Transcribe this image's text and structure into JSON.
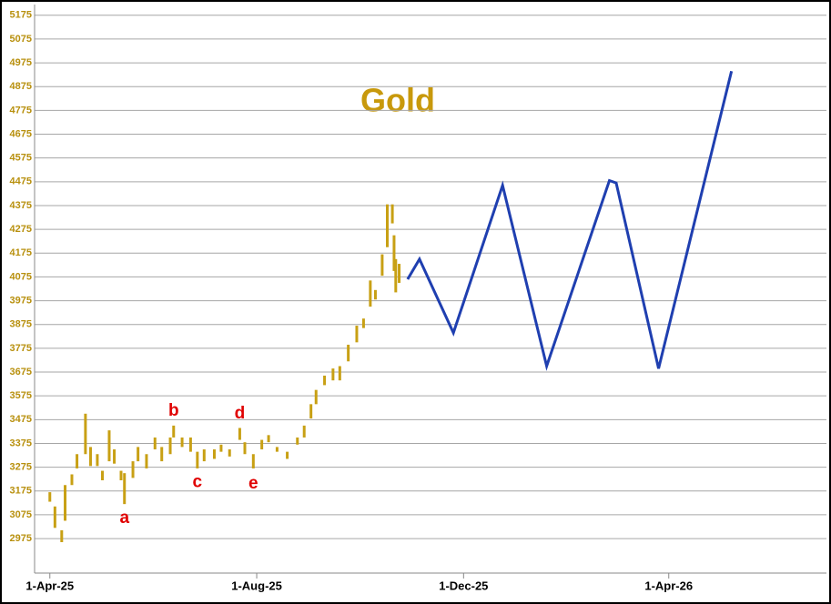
{
  "chart_data": {
    "type": "stock",
    "title": "Gold",
    "title_color": "#c8990c",
    "xlim": [
      "2025-03-23",
      "2026-07-03"
    ],
    "xticks": [
      {
        "value": "2025-04-01",
        "label": "1-Apr-25"
      },
      {
        "value": "2025-08-01",
        "label": "1-Aug-25"
      },
      {
        "value": "2025-12-01",
        "label": "1-Dec-25"
      },
      {
        "value": "2026-04-01",
        "label": "1-Apr-26"
      }
    ],
    "ylim": [
      2830,
      5220
    ],
    "yticks": [
      2975,
      3075,
      3175,
      3275,
      3375,
      3475,
      3575,
      3675,
      3775,
      3875,
      3975,
      4075,
      4175,
      4275,
      4375,
      4475,
      4575,
      4675,
      4775,
      4875,
      4975,
      5075,
      5175
    ],
    "grid": true,
    "series": [
      {
        "type": "hl-bar",
        "color": "#c8a014",
        "x": [
          "2025-04-01",
          "2025-04-04",
          "2025-04-08",
          "2025-04-10",
          "2025-04-14",
          "2025-04-17",
          "2025-04-22",
          "2025-04-25",
          "2025-04-29",
          "2025-05-02",
          "2025-05-06",
          "2025-05-09",
          "2025-05-13",
          "2025-05-15",
          "2025-05-20",
          "2025-05-23",
          "2025-05-28",
          "2025-06-02",
          "2025-06-06",
          "2025-06-11",
          "2025-06-13",
          "2025-06-18",
          "2025-06-23",
          "2025-06-27",
          "2025-07-01",
          "2025-07-07",
          "2025-07-11",
          "2025-07-16",
          "2025-07-22",
          "2025-07-25",
          "2025-07-30",
          "2025-08-04",
          "2025-08-08",
          "2025-08-13",
          "2025-08-19",
          "2025-08-25",
          "2025-08-29",
          "2025-09-02",
          "2025-09-05",
          "2025-09-10",
          "2025-09-15",
          "2025-09-19",
          "2025-09-24",
          "2025-09-29",
          "2025-10-03",
          "2025-10-07",
          "2025-10-10",
          "2025-10-14",
          "2025-10-17",
          "2025-10-20",
          "2025-10-21",
          "2025-10-22",
          "2025-10-24"
        ],
        "high": [
          3170,
          3110,
          3010,
          3200,
          3245,
          3330,
          3500,
          3360,
          3330,
          3260,
          3430,
          3350,
          3260,
          3250,
          3300,
          3360,
          3330,
          3400,
          3360,
          3400,
          3450,
          3400,
          3400,
          3340,
          3350,
          3350,
          3370,
          3350,
          3440,
          3380,
          3330,
          3390,
          3410,
          3360,
          3340,
          3400,
          3450,
          3540,
          3600,
          3660,
          3690,
          3700,
          3790,
          3870,
          3900,
          4060,
          4020,
          4170,
          4380,
          4380,
          4250,
          4150,
          4130
        ],
        "low": [
          3130,
          3020,
          2960,
          3050,
          3200,
          3270,
          3330,
          3280,
          3280,
          3220,
          3300,
          3290,
          3220,
          3120,
          3230,
          3300,
          3270,
          3350,
          3300,
          3330,
          3400,
          3360,
          3340,
          3270,
          3300,
          3310,
          3340,
          3320,
          3390,
          3330,
          3270,
          3350,
          3380,
          3340,
          3310,
          3370,
          3400,
          3480,
          3540,
          3620,
          3640,
          3640,
          3720,
          3800,
          3860,
          3950,
          3980,
          4080,
          4200,
          4300,
          4100,
          4010,
          4050
        ]
      },
      {
        "type": "line",
        "color": "#1f3fb0",
        "x": [
          "2025-10-29",
          "2025-11-05",
          "2025-11-25",
          "2025-12-24",
          "2026-01-19",
          "2026-02-25",
          "2026-03-01",
          "2026-03-26",
          "2026-05-08"
        ],
        "values": [
          4065,
          4150,
          3840,
          4460,
          3700,
          4480,
          4470,
          3690,
          4940
        ]
      }
    ],
    "annotations": [
      {
        "text": "a",
        "x": "2025-05-15",
        "y": 3060
      },
      {
        "text": "b",
        "x": "2025-06-13",
        "y": 3510
      },
      {
        "text": "c",
        "x": "2025-06-27",
        "y": 3210
      },
      {
        "text": "d",
        "x": "2025-07-22",
        "y": 3500
      },
      {
        "text": "e",
        "x": "2025-07-30",
        "y": 3205
      }
    ]
  }
}
